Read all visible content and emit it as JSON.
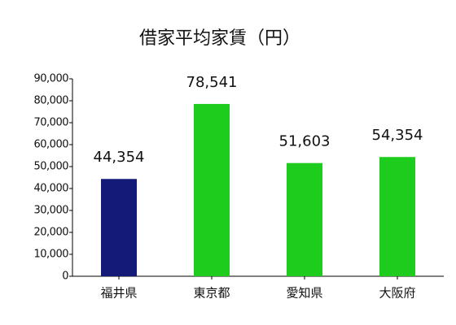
{
  "chart_data": {
    "type": "bar",
    "title": "借家平均家賃（円）",
    "categories": [
      "福井県",
      "東京都",
      "愛知県",
      "大阪府"
    ],
    "values": [
      44354,
      78541,
      51603,
      54354
    ],
    "value_labels": [
      "44,354",
      "78,541",
      "51,603",
      "54,354"
    ],
    "colors": [
      "#141a78",
      "#1ecc1e",
      "#1ecc1e",
      "#1ecc1e"
    ],
    "ylim": [
      0,
      90000
    ],
    "yticks": [
      0,
      {
        "value": 10000,
        "label": "10,000"
      },
      {
        "value": 20000,
        "label": "20,000"
      },
      {
        "value": 30000,
        "label": "30,000"
      },
      {
        "value": 40000,
        "label": "40,000"
      },
      {
        "value": 50000,
        "label": "50,000"
      },
      {
        "value": 60000,
        "label": "60,000"
      },
      {
        "value": 70000,
        "label": "70,000"
      },
      {
        "value": 80000,
        "label": "80,000"
      },
      {
        "value": 90000,
        "label": "90,000"
      }
    ],
    "grid": false
  }
}
